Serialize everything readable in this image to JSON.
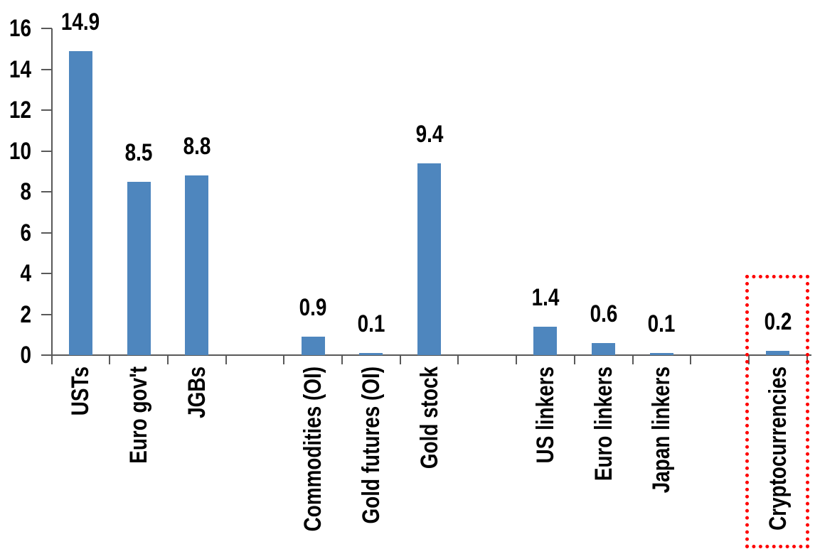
{
  "chart_data": {
    "type": "bar",
    "title": "",
    "xlabel": "",
    "ylabel": "",
    "legend": "none",
    "grid": false,
    "categories": [
      "USTs",
      "Euro gov't",
      "JGBs",
      "",
      "Commodities (OI)",
      "Gold futures (OI)",
      "Gold stock",
      "",
      "US linkers",
      "Euro linkers",
      "Japan linkers",
      "",
      "Cryptocurrencies"
    ],
    "values": [
      14.9,
      8.5,
      8.8,
      null,
      0.9,
      0.1,
      9.4,
      null,
      1.4,
      0.6,
      0.1,
      null,
      0.2
    ],
    "data_labels": [
      "14.9",
      "8.5",
      "8.8",
      null,
      "0.9",
      "0.1",
      "9.4",
      null,
      "1.4",
      "0.6",
      "0.1",
      null,
      "0.2"
    ],
    "ylim": [
      0,
      16
    ],
    "y_ticks": [
      0,
      2,
      4,
      6,
      8,
      10,
      12,
      14,
      16
    ],
    "y_tick_labels": [
      "0",
      "2",
      "4",
      "6",
      "8",
      "10",
      "12",
      "14",
      "16"
    ],
    "x_tick_marks": "category-boundaries",
    "colors": {
      "bar": "#4e86be",
      "axis": "#595959",
      "text": "#000000",
      "highlight": "#fe0000"
    },
    "highlight_box": {
      "target_category": "Cryptocurrencies",
      "border_style": "dotted",
      "border_color": "#fe0000"
    }
  }
}
